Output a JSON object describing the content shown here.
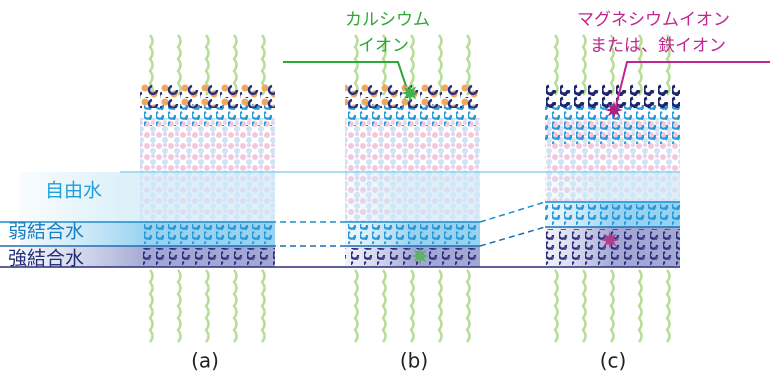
{
  "annotations": [
    {
      "lines": [
        "カルシウム",
        "イオン"
      ]
    },
    {
      "lines": [
        "マグネシウムイオン",
        "または、鉄イオン"
      ]
    }
  ],
  "legend": [
    "自由水",
    "弱結合水",
    "強結合水"
  ],
  "panels": [
    "(a)",
    "(b)",
    "(c)"
  ]
}
